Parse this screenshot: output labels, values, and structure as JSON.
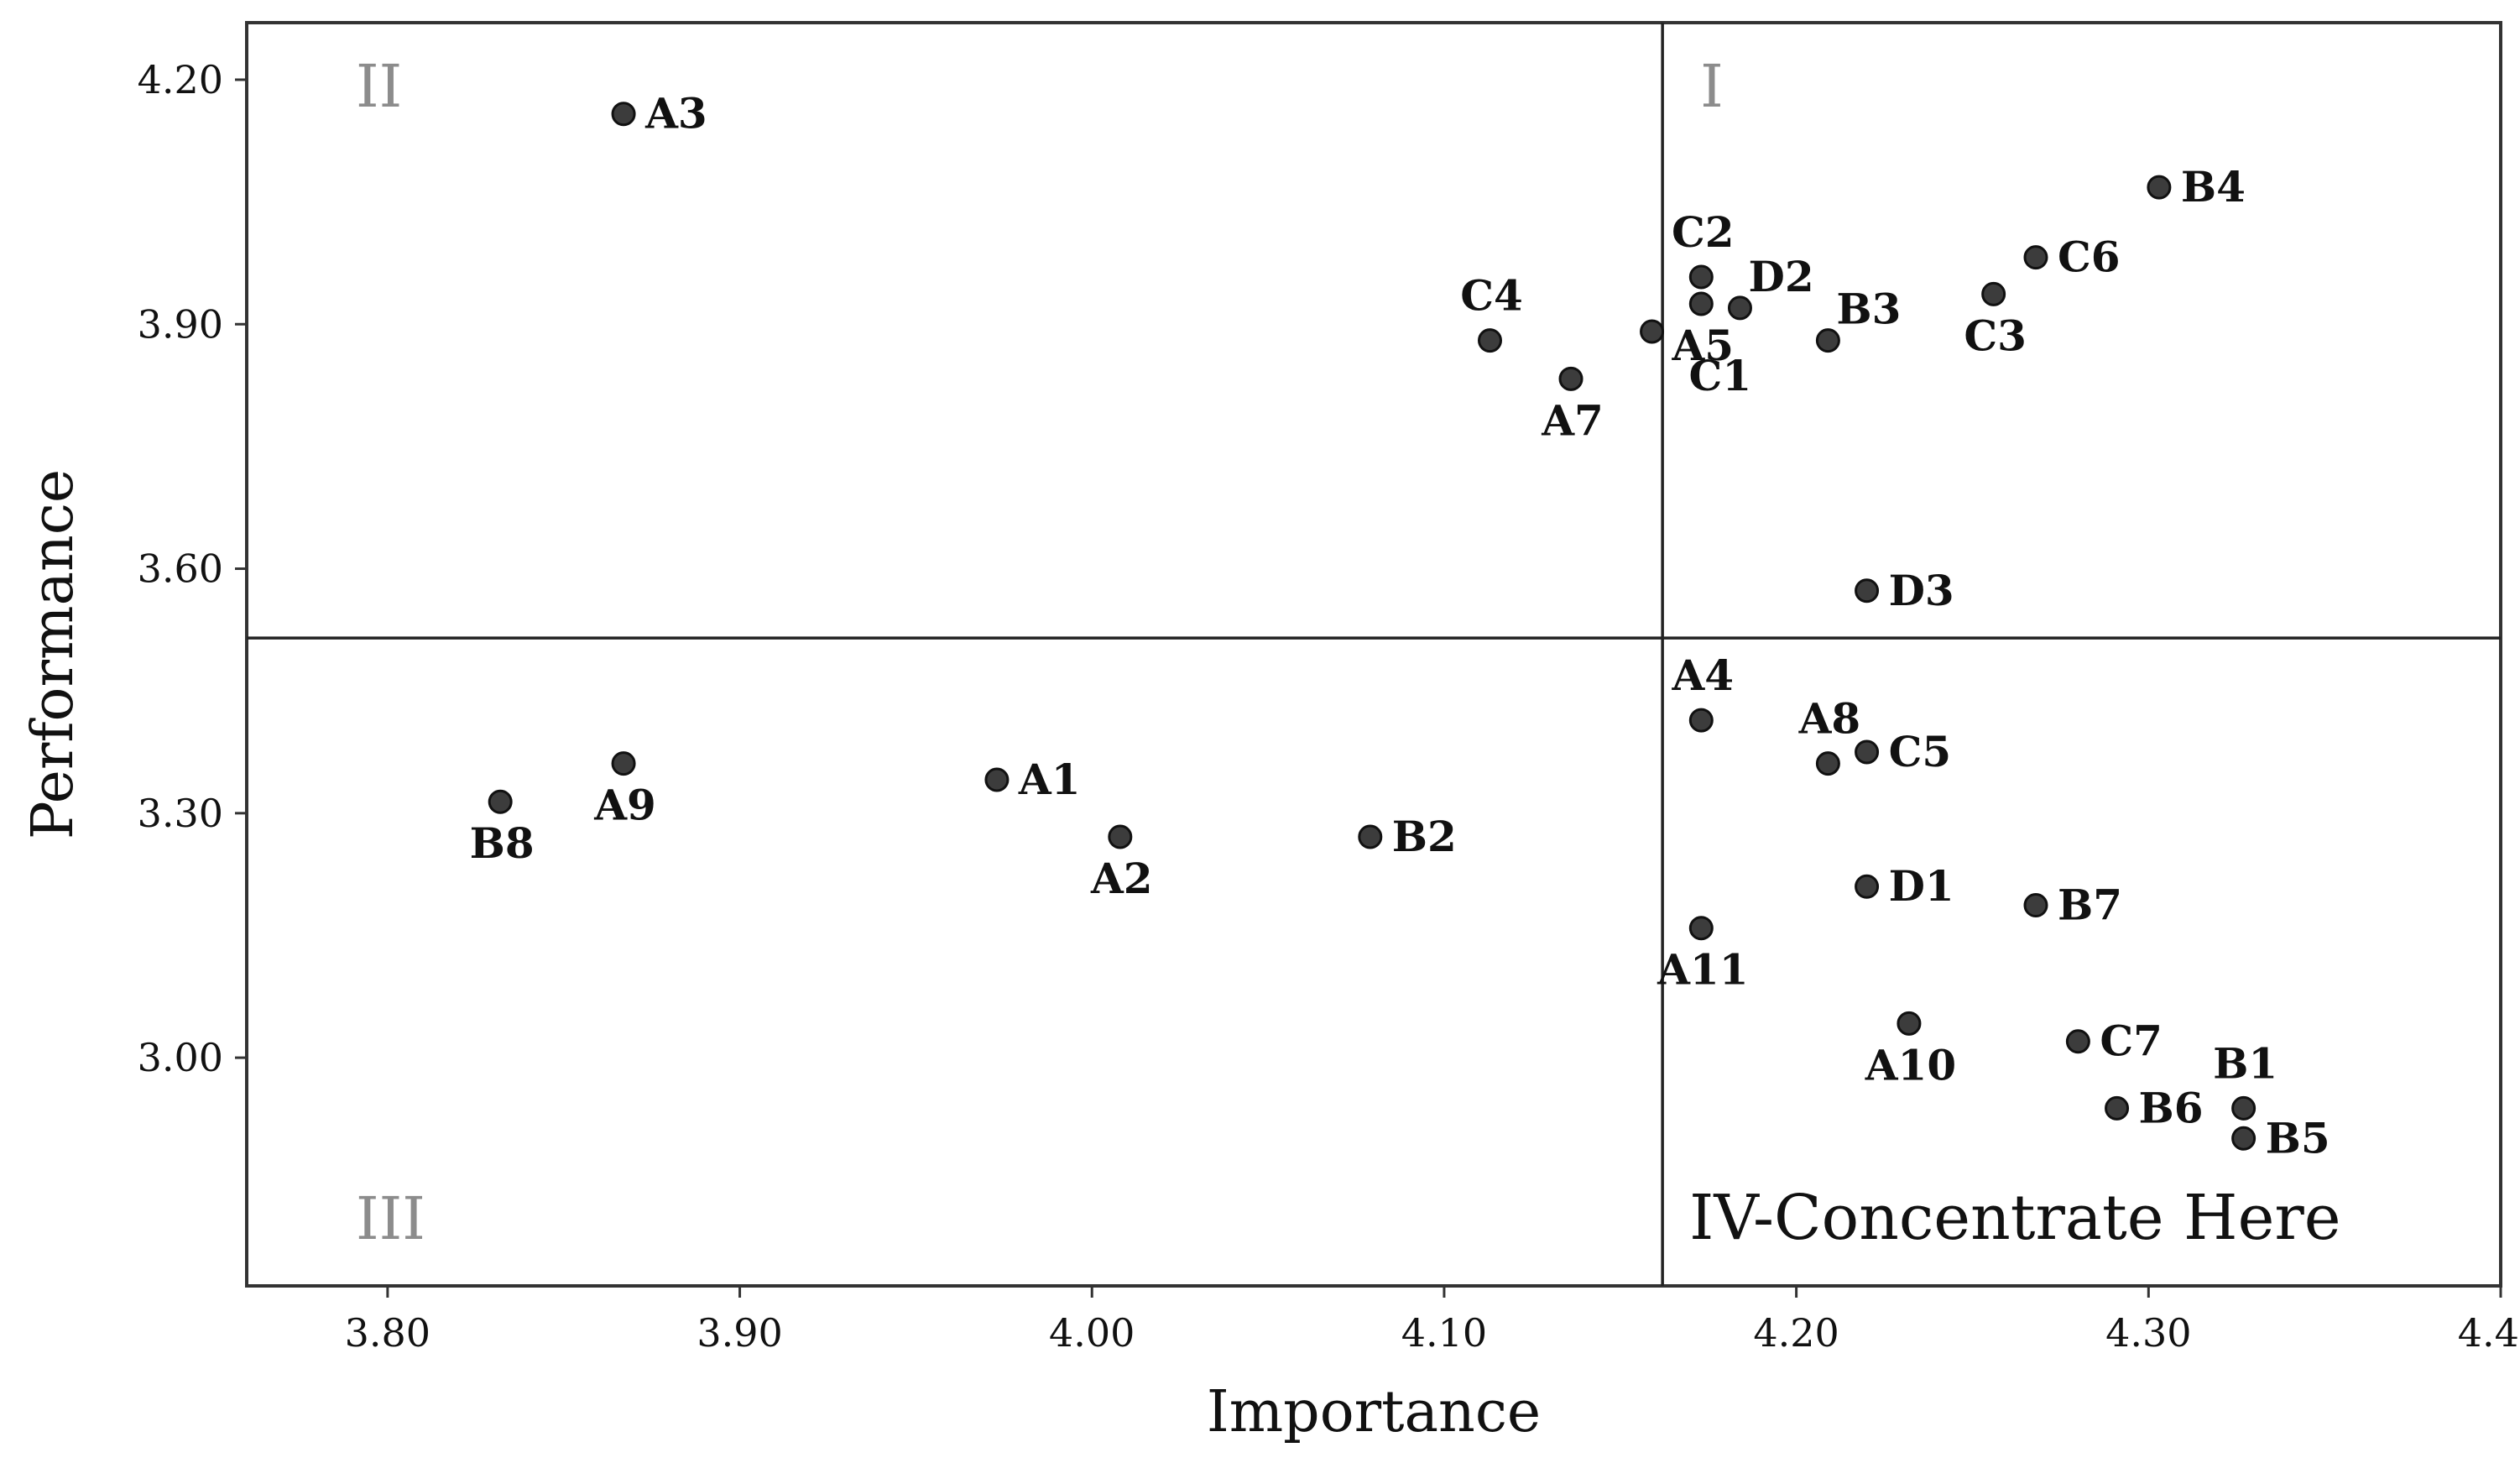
{
  "chart_data": {
    "type": "scatter",
    "title": "",
    "xlabel": "Importance",
    "ylabel": "Performance",
    "xlim": [
      3.76,
      4.4
    ],
    "ylim": [
      2.72,
      4.27
    ],
    "x_ticks": [
      "3.80",
      "3.90",
      "4.00",
      "4.10",
      "4.20",
      "4.30",
      "4.40"
    ],
    "y_ticks": [
      "3.00",
      "3.30",
      "3.60",
      "3.90",
      "4.20"
    ],
    "mean_importance": 4.162,
    "mean_performance": 3.515,
    "grid": false,
    "quadrants": [
      {
        "id": "I",
        "label": "I",
        "position": "top-right"
      },
      {
        "id": "II",
        "label": "II",
        "position": "top-left"
      },
      {
        "id": "III",
        "label": "III",
        "position": "bottom-left"
      },
      {
        "id": "IV",
        "label": "IV-Concentrate Here",
        "position": "bottom-right"
      }
    ],
    "points": [
      {
        "label": "A3",
        "x": 3.867,
        "y": 4.158,
        "anchor": "right"
      },
      {
        "label": "B4",
        "x": 4.303,
        "y": 4.068,
        "anchor": "right"
      },
      {
        "label": "C6",
        "x": 4.268,
        "y": 3.982,
        "anchor": "right"
      },
      {
        "label": "C2",
        "x": 4.173,
        "y": 3.958,
        "anchor": "above"
      },
      {
        "label": "D2",
        "x": 4.184,
        "y": 3.92,
        "anchor": "above-right"
      },
      {
        "label": "C3",
        "x": 4.256,
        "y": 3.937,
        "anchor": "below"
      },
      {
        "label": "A5",
        "x": 4.173,
        "y": 3.925,
        "anchor": "below"
      },
      {
        "label": "B3",
        "x": 4.209,
        "y": 3.88,
        "anchor": "above-right"
      },
      {
        "label": "C4",
        "x": 4.113,
        "y": 3.88,
        "anchor": "above"
      },
      {
        "label": "C1",
        "x": 4.159,
        "y": 3.891,
        "anchor": "below-right"
      },
      {
        "label": "A7",
        "x": 4.136,
        "y": 3.833,
        "anchor": "below"
      },
      {
        "label": "D3",
        "x": 4.22,
        "y": 3.573,
        "anchor": "right"
      },
      {
        "label": "A4",
        "x": 4.173,
        "y": 3.414,
        "anchor": "above"
      },
      {
        "label": "A8",
        "x": 4.209,
        "y": 3.361,
        "anchor": "above"
      },
      {
        "label": "C5",
        "x": 4.22,
        "y": 3.375,
        "anchor": "right"
      },
      {
        "label": "A9",
        "x": 3.867,
        "y": 3.361,
        "anchor": "below"
      },
      {
        "label": "A1",
        "x": 3.973,
        "y": 3.341,
        "anchor": "right"
      },
      {
        "label": "B8",
        "x": 3.832,
        "y": 3.314,
        "anchor": "below"
      },
      {
        "label": "A2",
        "x": 4.008,
        "y": 3.271,
        "anchor": "below"
      },
      {
        "label": "B2",
        "x": 4.079,
        "y": 3.271,
        "anchor": "right"
      },
      {
        "label": "D1",
        "x": 4.22,
        "y": 3.21,
        "anchor": "right"
      },
      {
        "label": "B7",
        "x": 4.268,
        "y": 3.187,
        "anchor": "right"
      },
      {
        "label": "A11",
        "x": 4.173,
        "y": 3.159,
        "anchor": "below"
      },
      {
        "label": "A10",
        "x": 4.232,
        "y": 3.042,
        "anchor": "below"
      },
      {
        "label": "C7",
        "x": 4.28,
        "y": 3.02,
        "anchor": "right"
      },
      {
        "label": "B1",
        "x": 4.327,
        "y": 2.938,
        "anchor": "above"
      },
      {
        "label": "B6",
        "x": 4.291,
        "y": 2.938,
        "anchor": "right"
      },
      {
        "label": "B5",
        "x": 4.327,
        "y": 2.901,
        "anchor": "right"
      }
    ]
  },
  "colors": {
    "marker_fill": "#3c3c3c",
    "marker_edge": "#111111",
    "frame": "#333333",
    "quadrant_label_muted": "#8c8c8c",
    "text": "#111111"
  }
}
